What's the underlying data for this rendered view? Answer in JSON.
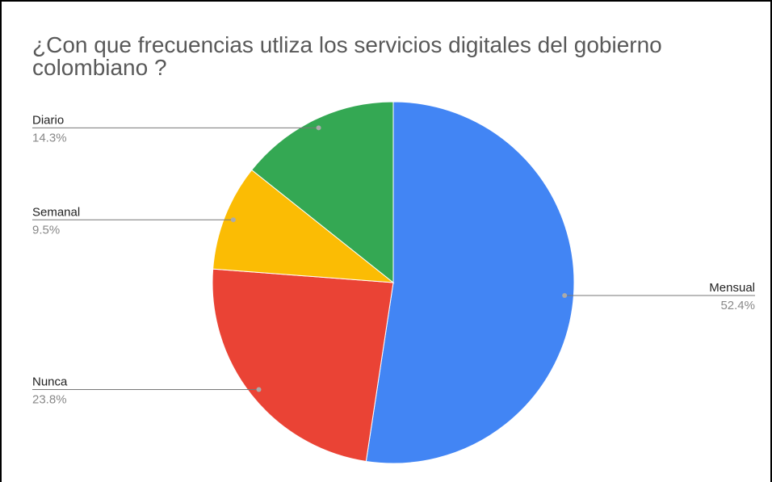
{
  "chart_data": {
    "type": "pie",
    "title": "¿Con que frecuencias utliza los servicios digitales del gobierno colombiano ?",
    "categories": [
      "Mensual",
      "Nunca",
      "Semanal",
      "Diario"
    ],
    "values": [
      52.4,
      23.8,
      9.5,
      14.3
    ],
    "value_labels": [
      "52.4%",
      "23.8%",
      "9.5%",
      "14.3%"
    ],
    "colors": [
      "#4285f4",
      "#ea4335",
      "#fbbc04",
      "#34a853"
    ]
  }
}
